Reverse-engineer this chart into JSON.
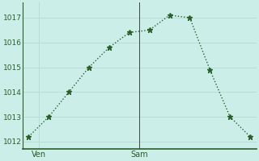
{
  "x_values": [
    0,
    1,
    2,
    3,
    4,
    5,
    6,
    7,
    8,
    9,
    10,
    11
  ],
  "y_values": [
    1012.2,
    1013.0,
    1014.0,
    1015.0,
    1015.8,
    1016.4,
    1016.5,
    1017.1,
    1017.0,
    1014.9,
    1013.0,
    1012.2
  ],
  "ven_x": 0.5,
  "sam_x": 5.5,
  "xtick_labels": [
    "Ven",
    "Sam"
  ],
  "ytick_positions": [
    1012,
    1013,
    1014,
    1015,
    1016,
    1017
  ],
  "ytick_labels": [
    "1012",
    "1013",
    "1014",
    "1015",
    "1016",
    "1017"
  ],
  "vline_x": 5.5,
  "ymin": 1011.7,
  "ymax": 1017.6,
  "xmin": -0.3,
  "xmax": 11.3,
  "line_color": "#2a5e2a",
  "bg_color": "#cceee8",
  "grid_color": "#b8dcd6",
  "marker": "*",
  "marker_size": 4.5,
  "line_width": 1.0,
  "tick_fontsize": 6.5,
  "xlabel_fontsize": 7.0
}
